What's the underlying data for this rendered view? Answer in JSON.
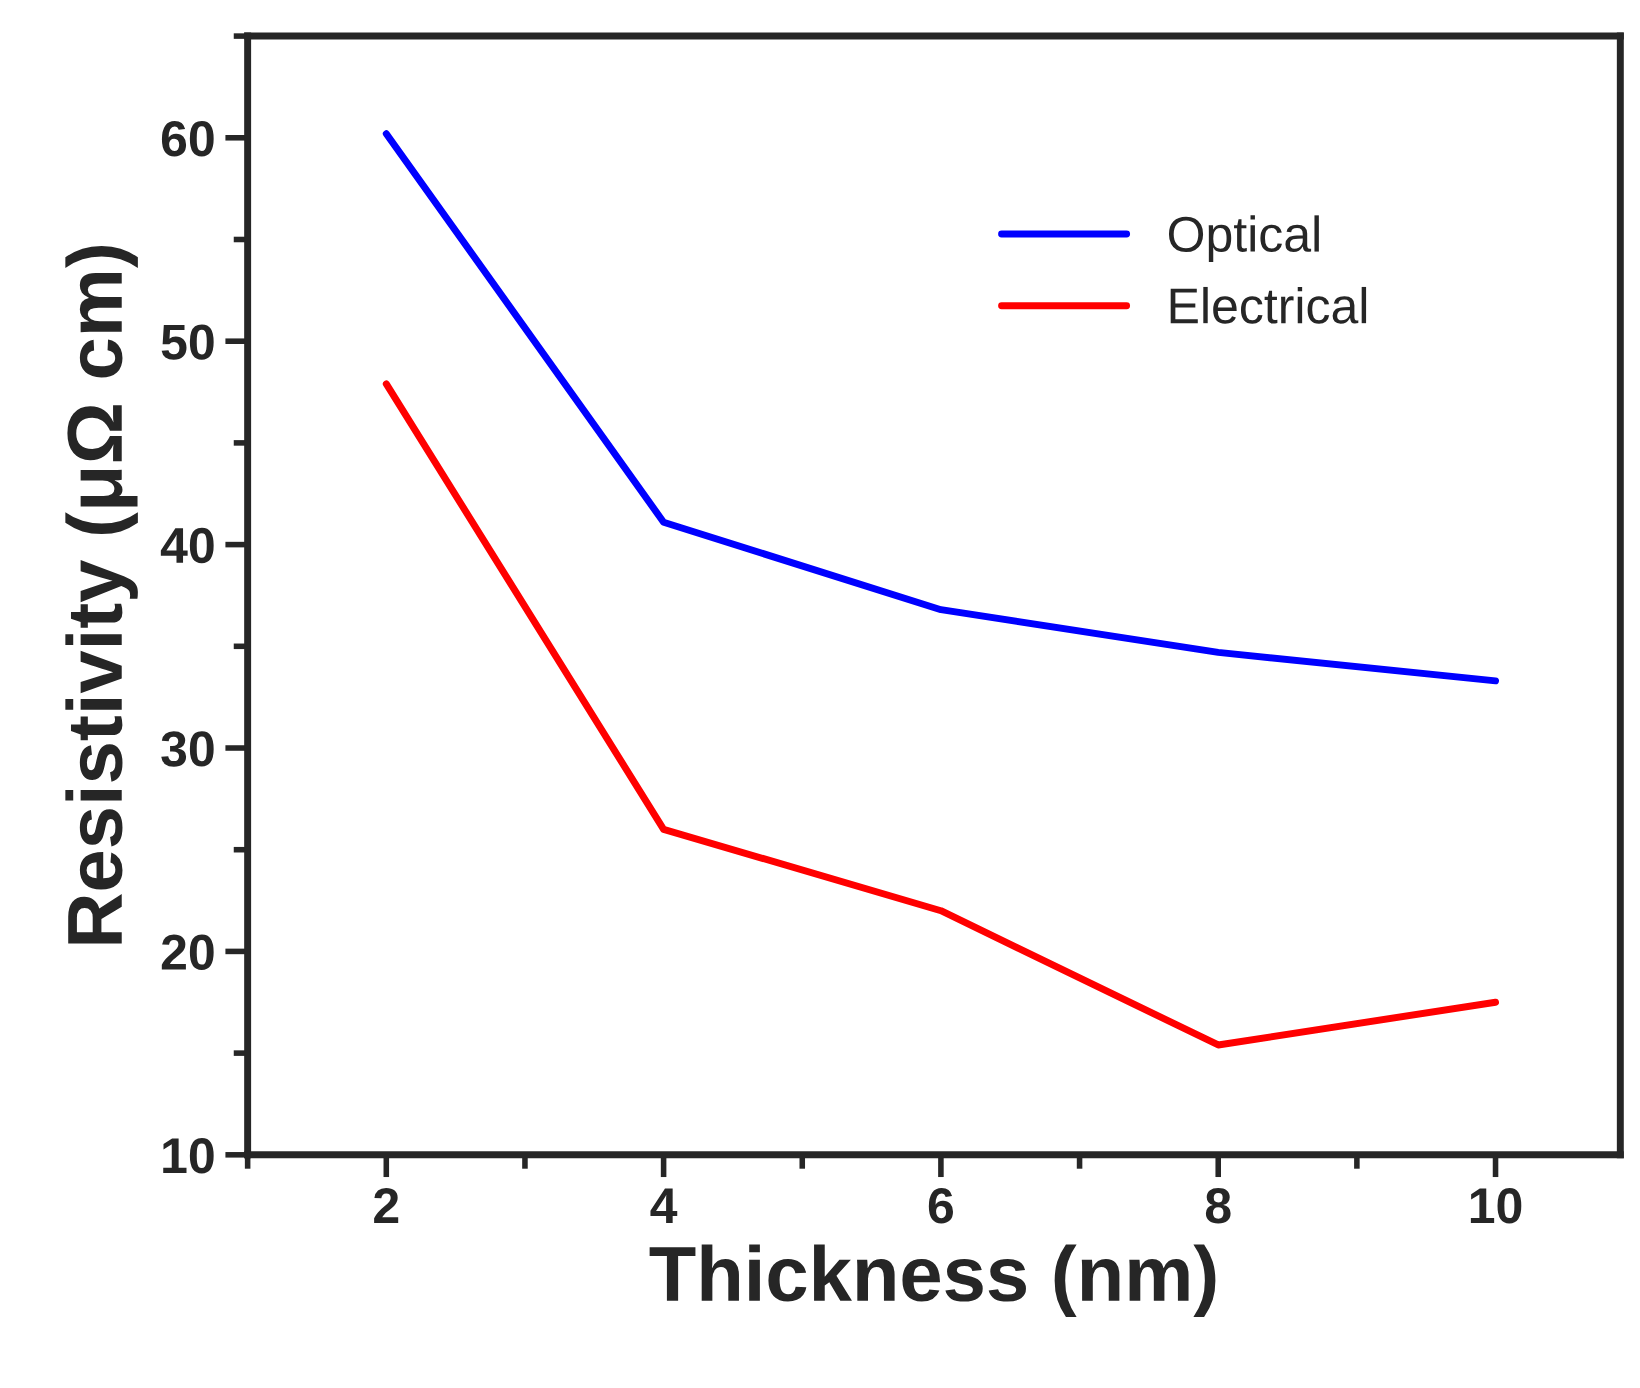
{
  "chart_data": {
    "type": "line",
    "xlabel": "Thickness (nm)",
    "ylabel": "Resistivity (μΩ cm)",
    "x": [
      2,
      4,
      6,
      8,
      10
    ],
    "series": [
      {
        "name": "Optical",
        "color": "#0000ff",
        "values": [
          60.2,
          41.1,
          36.8,
          34.7,
          33.3
        ]
      },
      {
        "name": "Electrical",
        "color": "#ff0000",
        "values": [
          47.9,
          26.0,
          22.0,
          15.4,
          17.5
        ]
      }
    ],
    "xlim": [
      1,
      10.9
    ],
    "xticks": [
      2,
      4,
      6,
      8,
      10
    ],
    "ylim": [
      10,
      65
    ],
    "yticks": [
      10,
      20,
      30,
      40,
      50,
      60
    ],
    "grid": false,
    "legend": "top right",
    "marker": "none",
    "line_style": "solid"
  }
}
